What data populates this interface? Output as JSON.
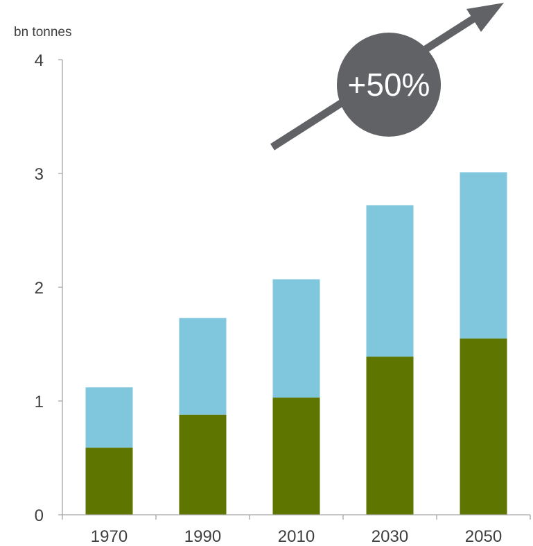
{
  "chart_data": {
    "type": "bar",
    "stacked": true,
    "categories": [
      "1970",
      "1990",
      "2010",
      "2030",
      "2050"
    ],
    "series": [
      {
        "color": "#5e7600",
        "values": [
          0.59,
          0.88,
          1.03,
          1.39,
          1.55
        ]
      },
      {
        "color": "#80c7dd",
        "values": [
          0.53,
          0.85,
          1.04,
          1.33,
          1.46
        ]
      }
    ],
    "ylabel": "bn tonnes",
    "ylim": [
      0,
      4
    ],
    "yticks": [
      0,
      1,
      2,
      3,
      4
    ],
    "grid": false,
    "legend": "none",
    "annotation": {
      "label": "+50%",
      "color": "#616266",
      "icon": "arrow-up-right-icon"
    }
  }
}
